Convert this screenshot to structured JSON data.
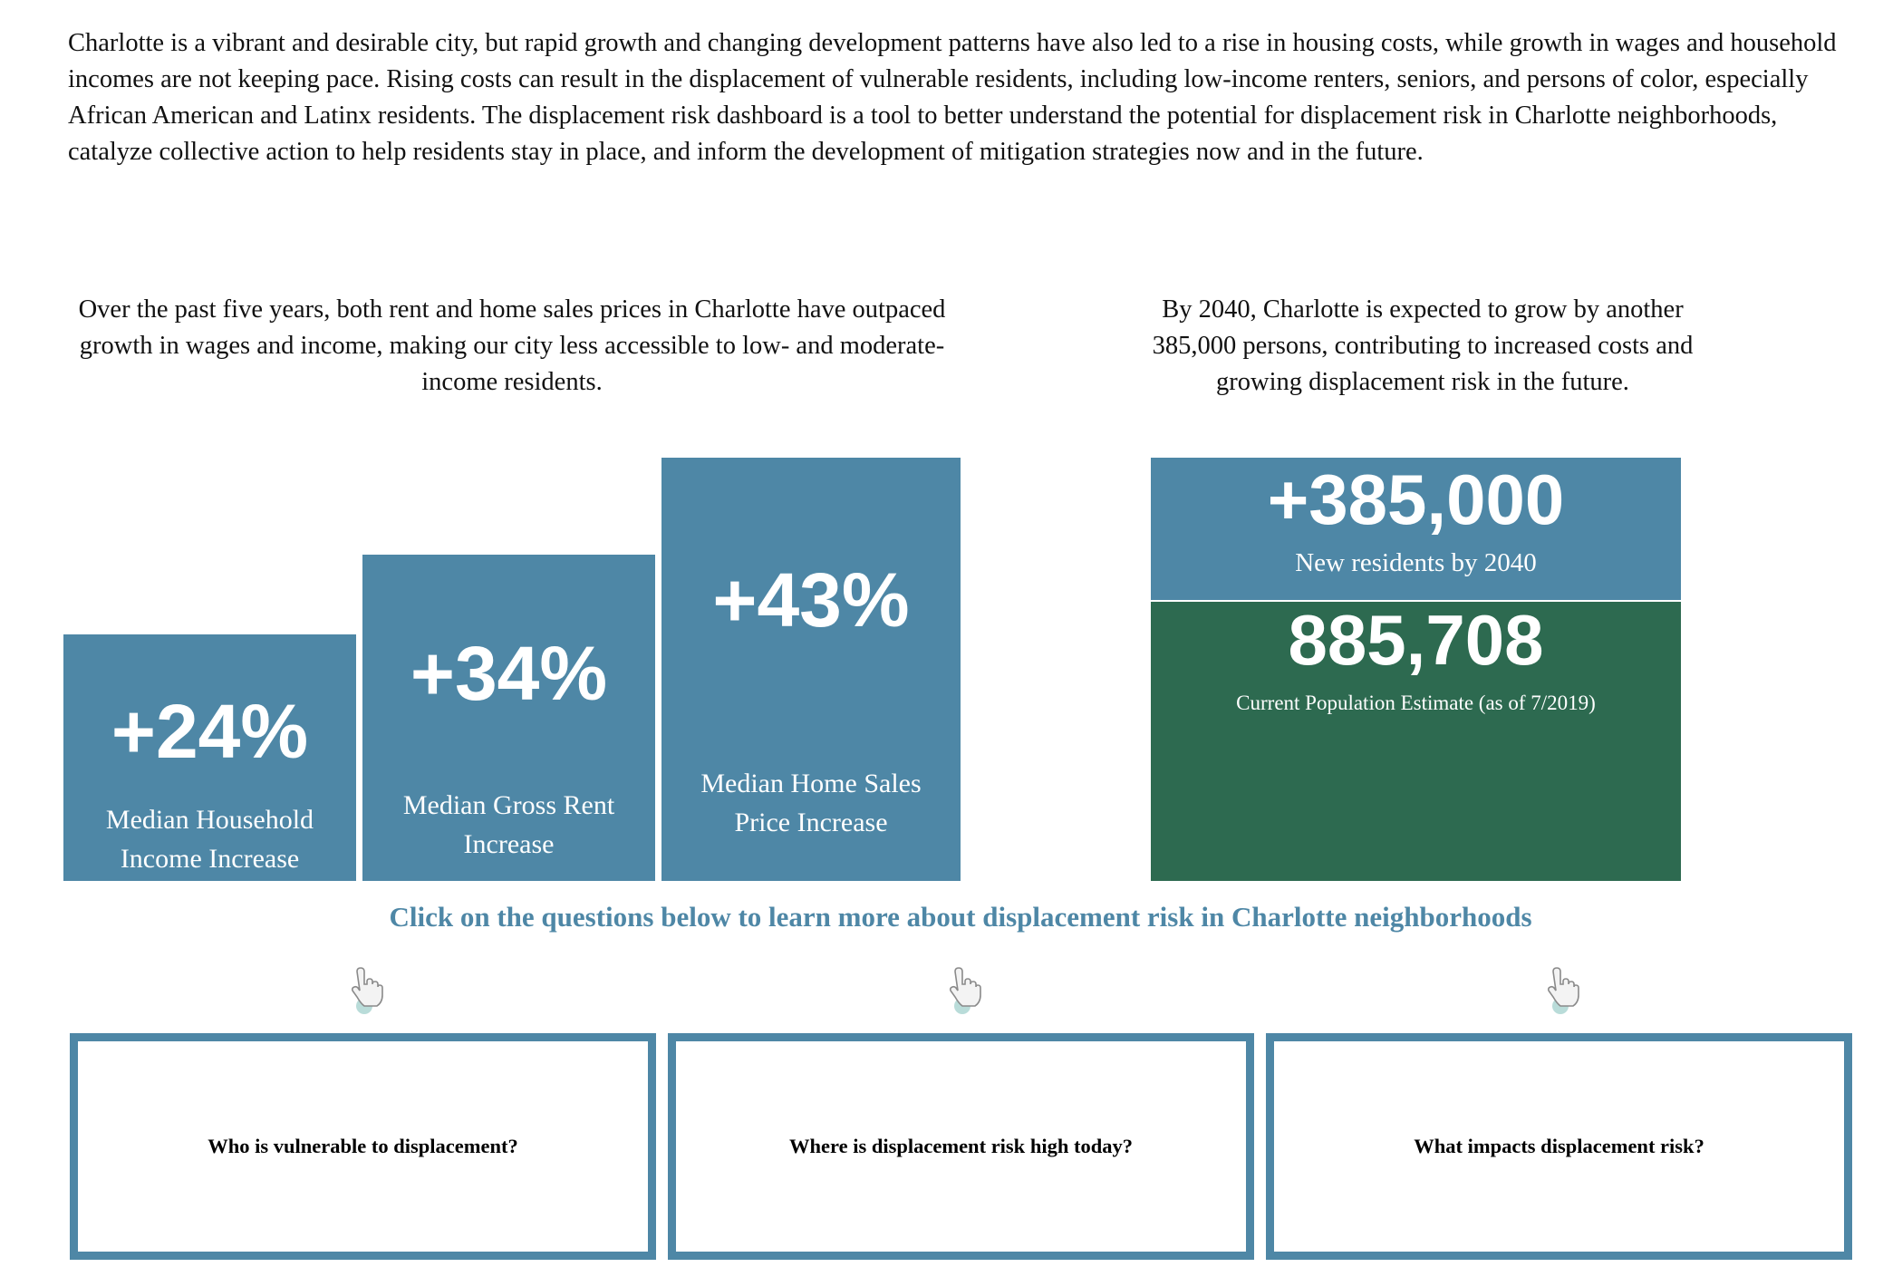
{
  "intro": "Charlotte is a vibrant and desirable city, but rapid growth and changing development patterns have also led to a rise in housing costs, while growth in wages and household incomes are not keeping pace. Rising costs can result in the displacement of vulnerable residents, including low-income renters, seniors, and persons of color, especially African American and Latinx residents. The displacement risk dashboard is a tool to better understand the potential for displacement risk in Charlotte neighborhoods, catalyze collective action to help residents stay in place, and inform the development of mitigation strategies now and in the future.",
  "left_section": {
    "text": "Over the past five years, both rent and home sales prices in Charlotte have outpaced growth in wages and income, making our city less accessible to low- and moderate-income residents.",
    "bars": [
      {
        "value": "+24%",
        "label_line1": "Median Household",
        "label_line2": "Income Increase",
        "percent": 24
      },
      {
        "value": "+34%",
        "label_line1": "Median Gross Rent",
        "label_line2": "Increase",
        "percent": 34
      },
      {
        "value": "+43%",
        "label_line1": "Median Home Sales",
        "label_line2": "Price Increase",
        "percent": 43
      }
    ]
  },
  "right_section": {
    "text": "By 2040, Charlotte is expected to grow by another 385,000 persons, contributing to increased costs and growing displacement risk in the future.",
    "growth": {
      "value": "+385,000",
      "label": "New residents by 2040"
    },
    "current": {
      "value": "885,708",
      "label": "Current Population Estimate (as of 7/2019)"
    }
  },
  "cta": "Click on the questions below to learn more about displacement risk in Charlotte neighborhoods",
  "questions": [
    {
      "label": "Who is vulnerable to displacement?",
      "icon": "pointing-hand-icon"
    },
    {
      "label": "Where is displacement risk high today?",
      "icon": "pointing-hand-icon"
    },
    {
      "label": "What impacts displacement risk?",
      "icon": "pointing-hand-icon"
    }
  ],
  "colors": {
    "blue": "#4e87a6",
    "green": "#2d6a50"
  }
}
